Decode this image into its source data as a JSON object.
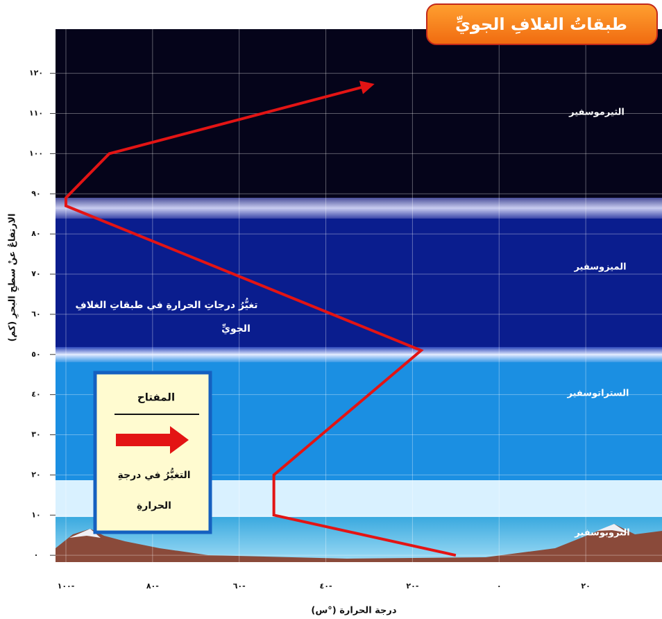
{
  "chart_data": {
    "type": "line",
    "title": "طبقاتُ الغلافِ الجويِّ",
    "x_label": "درجة الحرارة (°س)",
    "y_label": "الارتفاعُ عنْ سطحِ البحرِ (كم)",
    "annotation": "تغيُّرُ درجاتِ الحرارةِ في طبقاتِ الغلافِ الجويِّ",
    "layer_labels": [
      "الثيرموسفير",
      "الميزوسفير",
      "الستراتوسفير",
      "التروبوسفير"
    ],
    "legend_title": "المفتاح",
    "series": [
      {
        "name": "التغيُّرُ في درجةِ الحرارةِ",
        "color": "#e31414",
        "x": [
          -10,
          -52,
          -52,
          -18,
          -100,
          -100,
          -90,
          -30
        ],
        "values": [
          0,
          10,
          20,
          51,
          87,
          89,
          100,
          117
        ]
      }
    ],
    "xlim": [
      -102.4,
      37.6
    ],
    "ylim": [
      -1.7,
      131
    ],
    "xticks": [
      {
        "value": -100,
        "label": "١٠٠-"
      },
      {
        "value": -80,
        "label": "٨٠-"
      },
      {
        "value": -60,
        "label": "٦٠-"
      },
      {
        "value": -40,
        "label": "٤٠-"
      },
      {
        "value": -20,
        "label": "٢٠-"
      },
      {
        "value": 0,
        "label": "٠"
      },
      {
        "value": 20,
        "label": "٢٠"
      }
    ],
    "yticks": [
      {
        "value": 0,
        "label": "٠"
      },
      {
        "value": 10,
        "label": "١٠"
      },
      {
        "value": 20,
        "label": "٢٠"
      },
      {
        "value": 30,
        "label": "٣٠"
      },
      {
        "value": 40,
        "label": "٤٠"
      },
      {
        "value": 50,
        "label": "٥٠"
      },
      {
        "value": 60,
        "label": "٦٠"
      },
      {
        "value": 70,
        "label": "٧٠"
      },
      {
        "value": 80,
        "label": "٨٠"
      },
      {
        "value": 90,
        "label": "٩٠"
      },
      {
        "value": 100,
        "label": "١٠٠"
      },
      {
        "value": 110,
        "label": "١١٠"
      },
      {
        "value": 120,
        "label": "١٢٠"
      }
    ],
    "grid": true
  }
}
